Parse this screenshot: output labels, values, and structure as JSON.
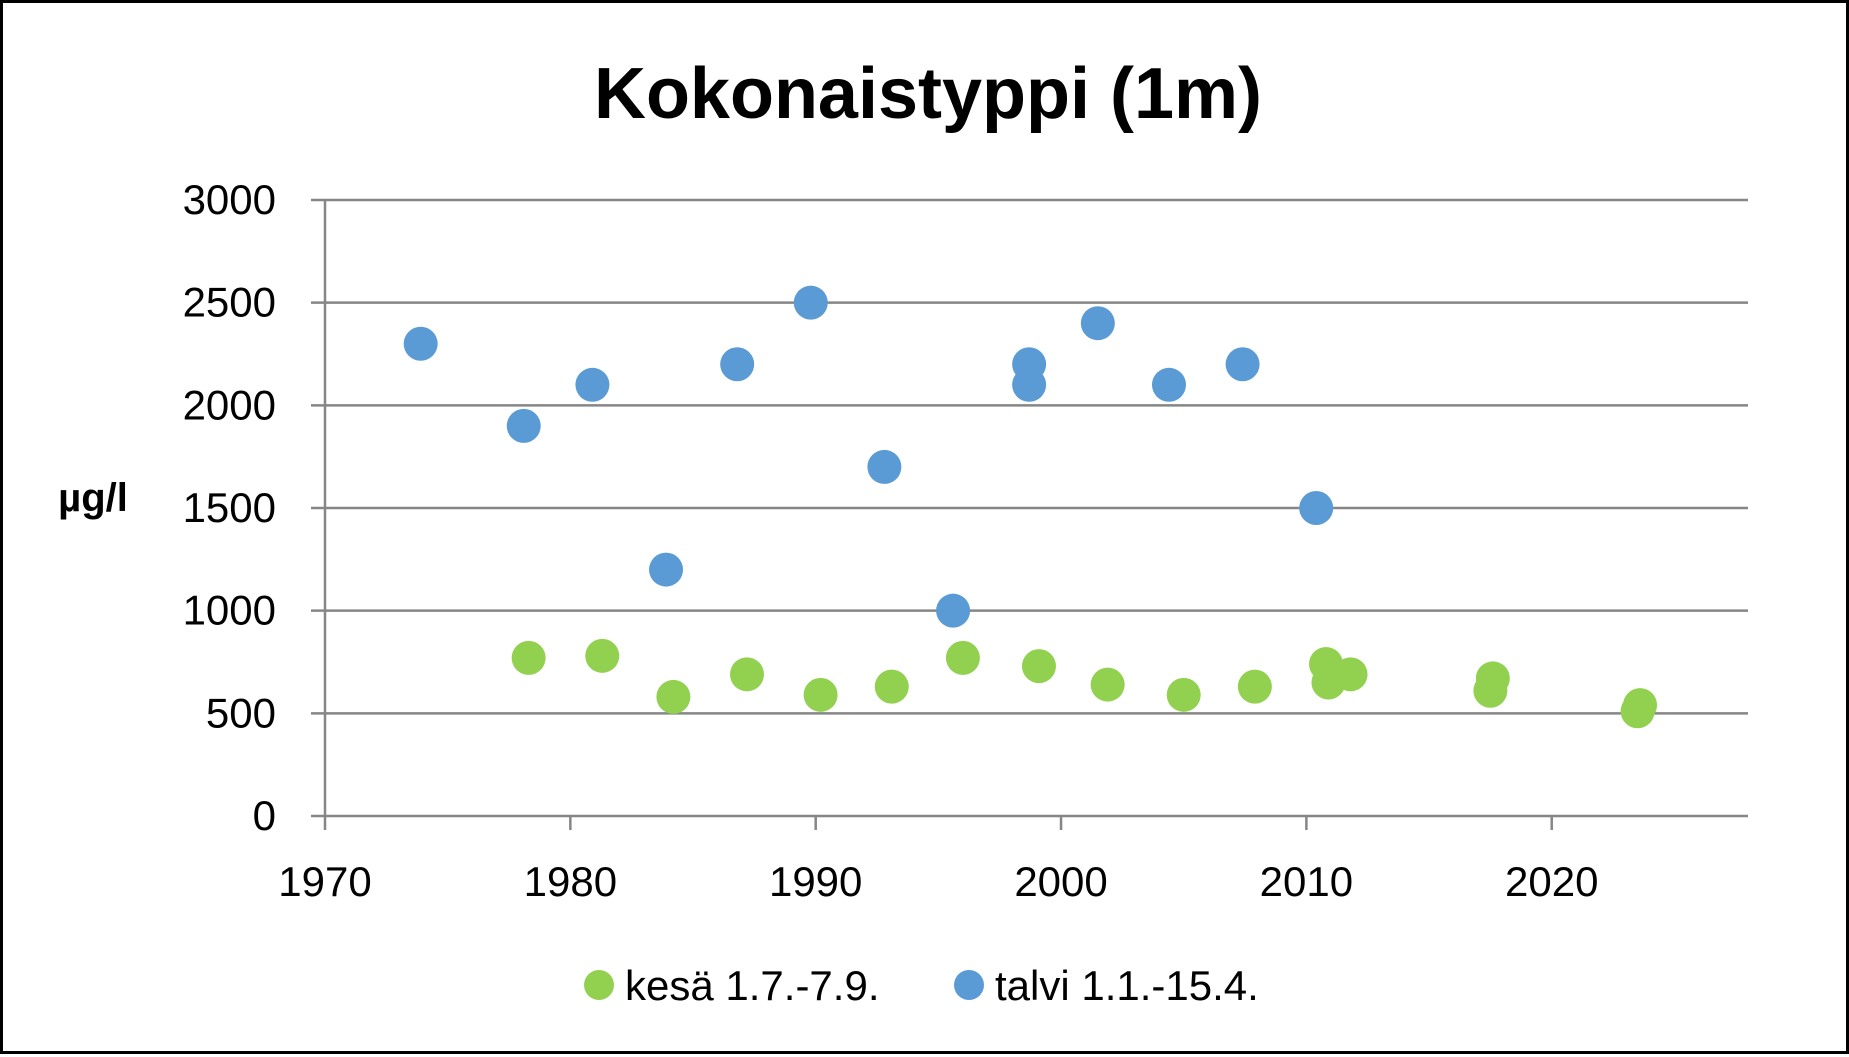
{
  "chart_data": {
    "type": "scatter",
    "title": "Kokonaistyppi (1m)",
    "xlabel": "",
    "ylabel": "µg/l",
    "xlim": [
      1970,
      2028
    ],
    "ylim": [
      0,
      3000
    ],
    "xticks": [
      1970,
      1980,
      1990,
      2000,
      2010,
      2020
    ],
    "yticks": [
      0,
      500,
      1000,
      1500,
      2000,
      2500,
      3000
    ],
    "grid": true,
    "legend_position": "bottom",
    "series": [
      {
        "name": "kesä 1.7.-7.9.",
        "color": "#92d050",
        "points": [
          [
            1978.3,
            770
          ],
          [
            1981.3,
            780
          ],
          [
            1984.2,
            580
          ],
          [
            1987.2,
            690
          ],
          [
            1990.2,
            590
          ],
          [
            1993.1,
            630
          ],
          [
            1996.0,
            770
          ],
          [
            1999.1,
            730
          ],
          [
            2001.9,
            640
          ],
          [
            2005.0,
            590
          ],
          [
            2007.9,
            630
          ],
          [
            2010.8,
            740
          ],
          [
            2010.9,
            650
          ],
          [
            2011.8,
            690
          ],
          [
            2017.5,
            610
          ],
          [
            2017.6,
            670
          ],
          [
            2023.5,
            510
          ],
          [
            2023.6,
            540
          ]
        ]
      },
      {
        "name": "talvi 1.1.-15.4.",
        "color": "#5b9bd5",
        "points": [
          [
            1973.9,
            2300
          ],
          [
            1978.1,
            1900
          ],
          [
            1980.9,
            2100
          ],
          [
            1983.9,
            1200
          ],
          [
            1986.8,
            2200
          ],
          [
            1989.8,
            2500
          ],
          [
            1992.8,
            1700
          ],
          [
            1995.6,
            1000
          ],
          [
            1998.7,
            2200
          ],
          [
            1998.7,
            2100
          ],
          [
            2001.5,
            2400
          ],
          [
            2004.4,
            2100
          ],
          [
            2007.4,
            2200
          ],
          [
            2010.4,
            1500
          ]
        ]
      }
    ]
  }
}
